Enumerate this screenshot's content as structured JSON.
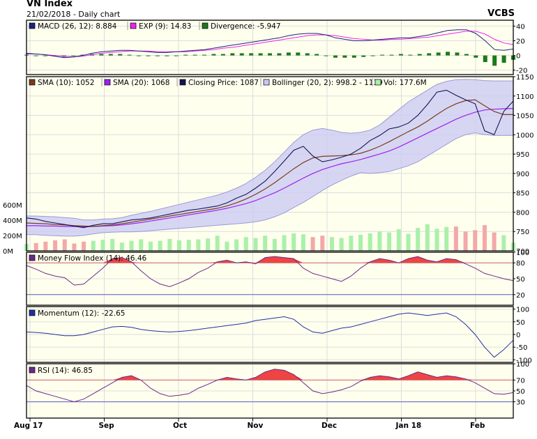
{
  "header": {
    "title": "VN Index",
    "subtitle": "21/02/2018 - Daily chart",
    "brand": "VCBS"
  },
  "colors": {
    "panel_bg": "#ffffee",
    "grid": "#dddddd",
    "frame": "#000000",
    "macd": "#1a237e",
    "macd_exp": "#ee22ee",
    "divergence": "#1b7a1b",
    "sma10": "#7a3b1c",
    "sma20": "#a020f0",
    "close": "#141452",
    "boll_fill": "#c8c8f4",
    "boll_line": "#9a9ad8",
    "vol_up": "#aaf0aa",
    "vol_down": "#f4a8a8",
    "mfi": "#6a2a8a",
    "overbought_fill": "#ee4444",
    "overbought_line": "#cc6666",
    "oversold_line": "#5a5ad0",
    "momentum": "#2030a0",
    "rsi": "#6a2a8a"
  },
  "x_axis": {
    "labels": [
      "Aug 17",
      "Sep",
      "Oct",
      "Nov",
      "Dec",
      "Jan 18",
      "Feb"
    ]
  },
  "chart_data": [
    {
      "type": "line",
      "panel": "macd",
      "legend": [
        {
          "label": "MACD (26, 12): 8.884",
          "color": "#1a237e"
        },
        {
          "label": "EXP (9): 14.83",
          "color": "#ee22ee"
        },
        {
          "label": "Divergence: -5.947",
          "color": "#1b7a1b"
        }
      ],
      "y_ticks": [
        "40",
        "20",
        "0",
        "-20"
      ],
      "ylim": [
        -26,
        48
      ],
      "series": [
        {
          "name": "MACD (26, 12)",
          "values": [
            3,
            2,
            1,
            -1,
            -3,
            -2,
            0,
            3,
            5,
            6,
            7,
            7,
            6,
            5,
            4,
            4,
            5,
            6,
            7,
            8,
            10,
            12,
            14,
            16,
            18,
            20,
            22,
            24,
            27,
            29,
            30,
            30,
            28,
            24,
            22,
            20,
            20,
            21,
            22,
            23,
            24,
            24,
            26,
            28,
            31,
            34,
            35,
            35,
            30,
            20,
            8,
            7,
            8.9
          ]
        },
        {
          "name": "EXP (9)",
          "values": [
            2,
            2,
            1,
            0,
            -1,
            -2,
            -1,
            1,
            3,
            4,
            5,
            6,
            6,
            6,
            5,
            5,
            5,
            5,
            6,
            7,
            8,
            10,
            11,
            13,
            15,
            17,
            19,
            21,
            23,
            25,
            27,
            28,
            28,
            27,
            25,
            23,
            22,
            21,
            21,
            22,
            22,
            23,
            24,
            25,
            27,
            29,
            31,
            33,
            33,
            29,
            22,
            17,
            14.8
          ]
        },
        {
          "name": "Divergence",
          "values": [
            1,
            0,
            0,
            -1,
            -2,
            0,
            1,
            2,
            2,
            2,
            2,
            1,
            0,
            -1,
            -1,
            -1,
            0,
            1,
            1,
            1,
            2,
            2,
            3,
            3,
            3,
            3,
            3,
            3,
            4,
            4,
            3,
            2,
            0,
            -3,
            -3,
            -3,
            -2,
            0,
            1,
            1,
            2,
            1,
            2,
            3,
            4,
            5,
            4,
            2,
            -3,
            -9,
            -14,
            -10,
            -5.9
          ]
        }
      ]
    },
    {
      "type": "line",
      "panel": "price",
      "legend": [
        {
          "label": "SMA (10): 1052",
          "color": "#7a3b1c"
        },
        {
          "label": "SMA (20): 1068",
          "color": "#a020f0"
        },
        {
          "label": "Closing Price: 1087",
          "color": "#141452"
        },
        {
          "label": "Bollinger (20, 2): 998.2 - 1139",
          "color": "#c8c8f4"
        },
        {
          "label": "Vol: 177.6M",
          "color": "#aaf0aa"
        }
      ],
      "y_ticks": [
        "1150",
        "1100",
        "1050",
        "1000",
        "950",
        "900",
        "850",
        "800",
        "750",
        "700"
      ],
      "ylim": [
        700,
        1150
      ],
      "volume_ticks": [
        "600M",
        "400M",
        "200M",
        "0M"
      ],
      "series": [
        {
          "name": "Closing Price",
          "values": [
            785,
            782,
            776,
            772,
            768,
            764,
            760,
            766,
            770,
            770,
            775,
            780,
            782,
            785,
            790,
            795,
            800,
            805,
            808,
            812,
            816,
            824,
            836,
            846,
            862,
            880,
            905,
            932,
            960,
            970,
            945,
            930,
            935,
            942,
            950,
            965,
            985,
            998,
            1015,
            1020,
            1030,
            1050,
            1078,
            1110,
            1115,
            1102,
            1090,
            1080,
            1010,
            1000,
            1060,
            1087
          ]
        },
        {
          "name": "SMA (10)",
          "values": [
            772,
            771,
            770,
            768,
            767,
            765,
            764,
            763,
            765,
            767,
            770,
            774,
            778,
            782,
            786,
            790,
            794,
            798,
            802,
            806,
            810,
            816,
            824,
            834,
            846,
            860,
            876,
            894,
            912,
            928,
            940,
            944,
            945,
            946,
            948,
            952,
            960,
            970,
            982,
            995,
            1008,
            1020,
            1035,
            1052,
            1068,
            1080,
            1088,
            1090,
            1075,
            1060,
            1052,
            1052
          ]
        },
        {
          "name": "SMA (20)",
          "values": [
            765,
            765,
            764,
            764,
            763,
            763,
            762,
            763,
            764,
            765,
            767,
            770,
            773,
            777,
            781,
            785,
            789,
            793,
            797,
            801,
            805,
            810,
            816,
            822,
            830,
            840,
            850,
            862,
            875,
            888,
            900,
            910,
            918,
            925,
            930,
            936,
            943,
            950,
            958,
            968,
            980,
            992,
            1004,
            1016,
            1028,
            1040,
            1050,
            1058,
            1064,
            1066,
            1067,
            1068
          ]
        },
        {
          "name": "Bollinger upper",
          "values": [
            790,
            790,
            789,
            788,
            786,
            784,
            780,
            780,
            782,
            783,
            786,
            792,
            797,
            802,
            808,
            814,
            820,
            826,
            832,
            838,
            844,
            852,
            862,
            874,
            890,
            908,
            930,
            955,
            980,
            1000,
            1012,
            1016,
            1012,
            1006,
            1004,
            1006,
            1012,
            1025,
            1045,
            1065,
            1085,
            1100,
            1115,
            1130,
            1138,
            1142,
            1143,
            1142,
            1140,
            1139,
            1139,
            1139
          ]
        },
        {
          "name": "Bollinger lower",
          "values": [
            742,
            742,
            740,
            739,
            738,
            738,
            740,
            744,
            747,
            748,
            749,
            749,
            750,
            752,
            754,
            756,
            758,
            760,
            762,
            764,
            766,
            768,
            770,
            772,
            775,
            780,
            788,
            798,
            812,
            825,
            840,
            856,
            870,
            882,
            893,
            902,
            900,
            902,
            905,
            912,
            920,
            930,
            945,
            960,
            975,
            990,
            1000,
            1005,
            1000,
            998,
            998,
            998
          ]
        }
      ],
      "volume": [
        0.15,
        0.17,
        0.2,
        0.23,
        0.25,
        0.16,
        0.2,
        0.22,
        0.24,
        0.26,
        0.18,
        0.22,
        0.25,
        0.2,
        0.22,
        0.26,
        0.23,
        0.24,
        0.25,
        0.27,
        0.33,
        0.2,
        0.25,
        0.3,
        0.28,
        0.33,
        0.26,
        0.34,
        0.38,
        0.36,
        0.3,
        0.33,
        0.3,
        0.28,
        0.33,
        0.35,
        0.38,
        0.42,
        0.4,
        0.47,
        0.37,
        0.5,
        0.58,
        0.48,
        0.52,
        0.53,
        0.42,
        0.45,
        0.56,
        0.4,
        0.34,
        0.18
      ]
    },
    {
      "type": "line",
      "panel": "mfi",
      "legend": [
        {
          "label": "Money Flow Index (14): 46.46",
          "color": "#6a2a8a"
        }
      ],
      "y_ticks": [
        "100",
        "80",
        "50",
        "20"
      ],
      "ylim": [
        0,
        100
      ],
      "overbought": 80,
      "oversold": 20,
      "series": [
        {
          "name": "Money Flow Index (14)",
          "values": [
            75,
            68,
            60,
            55,
            52,
            38,
            40,
            55,
            70,
            88,
            90,
            82,
            65,
            50,
            40,
            35,
            42,
            50,
            62,
            70,
            82,
            85,
            80,
            82,
            78,
            90,
            92,
            90,
            88,
            70,
            60,
            55,
            50,
            45,
            55,
            70,
            82,
            88,
            85,
            80,
            88,
            92,
            85,
            82,
            88,
            86,
            78,
            70,
            60,
            55,
            50,
            46.5
          ]
        }
      ]
    },
    {
      "type": "line",
      "panel": "momentum",
      "legend": [
        {
          "label": "Momentum (12): -22.65",
          "color": "#2030a0"
        }
      ],
      "y_ticks": [
        "100",
        "50",
        "0",
        "-50",
        "-100"
      ],
      "ylim": [
        -110,
        110
      ],
      "series": [
        {
          "name": "Momentum (12)",
          "values": [
            10,
            8,
            5,
            0,
            -5,
            -5,
            0,
            10,
            20,
            30,
            32,
            28,
            20,
            15,
            12,
            10,
            12,
            15,
            20,
            25,
            30,
            35,
            40,
            45,
            55,
            60,
            65,
            70,
            60,
            30,
            10,
            5,
            15,
            25,
            30,
            40,
            50,
            60,
            70,
            80,
            85,
            80,
            75,
            80,
            85,
            70,
            40,
            0,
            -50,
            -90,
            -60,
            -22.6
          ]
        }
      ]
    },
    {
      "type": "line",
      "panel": "rsi",
      "legend": [
        {
          "label": "RSI (14): 46.85",
          "color": "#6a2a8a"
        }
      ],
      "y_ticks": [
        "100",
        "70",
        "50",
        "30"
      ],
      "ylim": [
        0,
        100
      ],
      "overbought": 70,
      "oversold": 30,
      "series": [
        {
          "name": "RSI (14)",
          "values": [
            60,
            50,
            45,
            40,
            35,
            30,
            35,
            45,
            55,
            65,
            75,
            78,
            70,
            55,
            45,
            40,
            42,
            45,
            55,
            62,
            70,
            75,
            72,
            70,
            75,
            85,
            90,
            88,
            80,
            65,
            50,
            45,
            48,
            52,
            58,
            68,
            75,
            78,
            76,
            72,
            78,
            85,
            80,
            75,
            78,
            76,
            72,
            65,
            55,
            45,
            44,
            46.9
          ]
        }
      ]
    }
  ]
}
